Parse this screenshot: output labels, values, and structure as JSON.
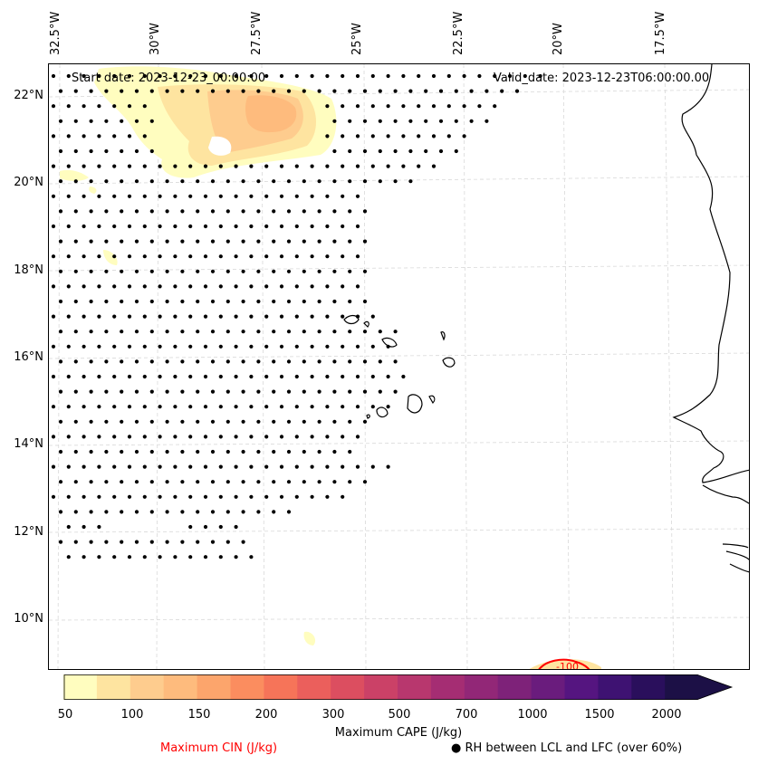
{
  "map": {
    "start_label": "Start date: 2023-12-23_00:00:00",
    "valid_label": "Valid_date: 2023-12-23T06:00:00.00",
    "longitude_labels": [
      "32.5°W",
      "30°W",
      "27.5°W",
      "25°W",
      "22.5°W",
      "20°W",
      "17.5°W"
    ],
    "latitude_labels": [
      "22°N",
      "20°N",
      "18°N",
      "16°N",
      "14°N",
      "12°N",
      "10°N"
    ],
    "cin_contour_label": "-100",
    "fields": [
      {
        "name": "Maximum CAPE (J/kg)",
        "type": "filled-contour",
        "colormap": "magma_r"
      },
      {
        "name": "Maximum CIN (J/kg)",
        "type": "contour",
        "color": "#ff0000"
      },
      {
        "name": "RH between LCL and LFC (over 60%)",
        "type": "stipple",
        "color": "#000000"
      }
    ]
  },
  "colorbar": {
    "title": "Maximum CAPE (J/kg)",
    "tick_labels": [
      "50",
      "100",
      "150",
      "200",
      "300",
      "500",
      "700",
      "1000",
      "1500",
      "2000"
    ],
    "colors": [
      "#fffdbf",
      "#fee4a0",
      "#fecc8e",
      "#febb7d",
      "#fca56c",
      "#fb8d5f",
      "#f67459",
      "#eb5f5c",
      "#dc4e60",
      "#cb4167",
      "#b8376e",
      "#a52d73",
      "#922777",
      "#7e2279",
      "#6a1c7d",
      "#551580",
      "#3e1272",
      "#2a0f5c",
      "#1c1046"
    ]
  },
  "legend": {
    "cin_label": "Maximum CIN (J/kg)",
    "cin_color": "#ff0000",
    "rh_marker": "●",
    "rh_label": "RH between LCL and LFC (over 60%)"
  }
}
